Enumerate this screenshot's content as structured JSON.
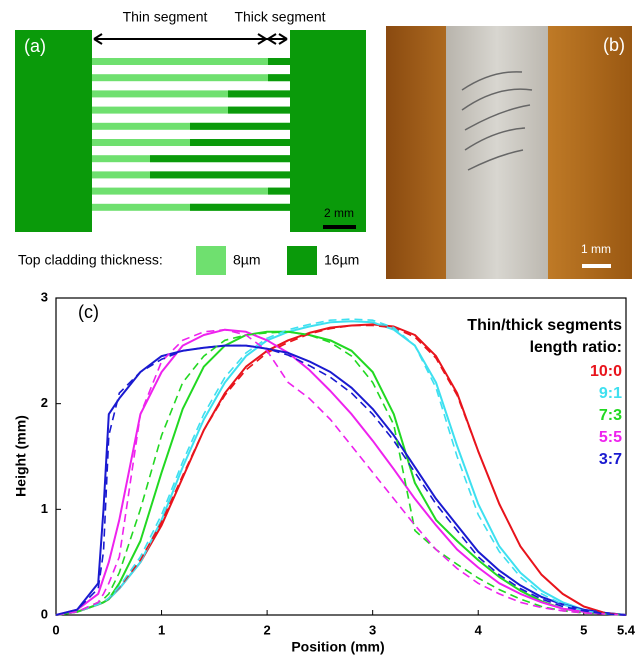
{
  "panel_a": {
    "label": "(a)",
    "thin": "Thin segment",
    "thick": "Thick segment",
    "scale": "2 mm",
    "legend_title": "Top cladding thickness:",
    "thin_value": "8µm",
    "thick_value": "16µm"
  },
  "panel_b": {
    "label": "(b)",
    "scale": "1 mm"
  },
  "chart_data": {
    "type": "line",
    "panel_label": "(c)",
    "x_label": "Position (mm)",
    "y_label": "Height (mm)",
    "legend_title": [
      "Thin/thick segments",
      "length ratio:"
    ],
    "xlim": [
      0,
      5.4
    ],
    "xticks": [
      0,
      1,
      2,
      3,
      4,
      5,
      5.4
    ],
    "ylim": [
      0,
      3
    ],
    "yticks": [
      0,
      1,
      2,
      3
    ],
    "x": [
      0,
      0.2,
      0.4,
      0.45,
      0.5,
      0.6,
      0.8,
      1,
      1.2,
      1.4,
      1.6,
      1.8,
      2,
      2.2,
      2.4,
      2.6,
      2.8,
      3,
      3.2,
      3.4,
      3.6,
      3.8,
      4,
      4.2,
      4.4,
      4.6,
      4.8,
      5,
      5.2,
      5.4
    ],
    "series": [
      {
        "name": "10:0",
        "color": "#e8141c",
        "values": [
          0,
          0.03,
          0.1,
          0.12,
          0.15,
          0.25,
          0.5,
          0.85,
          1.3,
          1.75,
          2.1,
          2.35,
          2.5,
          2.6,
          2.67,
          2.72,
          2.74,
          2.75,
          2.73,
          2.65,
          2.45,
          2.1,
          1.55,
          1.05,
          0.65,
          0.38,
          0.2,
          0.08,
          0.02,
          0
        ]
      },
      {
        "name": "9:1",
        "color": "#3ee0f0",
        "values": [
          0,
          0.03,
          0.1,
          0.12,
          0.15,
          0.25,
          0.5,
          0.9,
          1.4,
          1.85,
          2.2,
          2.45,
          2.6,
          2.68,
          2.73,
          2.77,
          2.78,
          2.77,
          2.7,
          2.55,
          2.2,
          1.6,
          1.05,
          0.65,
          0.4,
          0.23,
          0.12,
          0.05,
          0.02,
          0
        ]
      },
      {
        "name": "7:3",
        "color": "#22d822",
        "values": [
          0,
          0.03,
          0.1,
          0.12,
          0.15,
          0.3,
          0.7,
          1.35,
          1.95,
          2.35,
          2.55,
          2.65,
          2.68,
          2.68,
          2.65,
          2.6,
          2.5,
          2.3,
          1.9,
          1.25,
          0.9,
          0.7,
          0.52,
          0.36,
          0.23,
          0.13,
          0.06,
          0.03,
          0.01,
          0
        ]
      },
      {
        "name": "5:5",
        "color": "#ee22ee",
        "values": [
          0,
          0.05,
          0.2,
          0.35,
          0.5,
          0.9,
          1.9,
          2.3,
          2.55,
          2.65,
          2.7,
          2.68,
          2.6,
          2.48,
          2.32,
          2.12,
          1.9,
          1.65,
          1.38,
          1.1,
          0.85,
          0.62,
          0.45,
          0.3,
          0.2,
          0.12,
          0.06,
          0.03,
          0.01,
          0
        ]
      },
      {
        "name": "3:7",
        "color": "#1a1ad0",
        "values": [
          0,
          0.05,
          0.3,
          1.0,
          1.9,
          2.05,
          2.3,
          2.45,
          2.5,
          2.53,
          2.55,
          2.55,
          2.52,
          2.48,
          2.4,
          2.3,
          2.15,
          1.95,
          1.7,
          1.4,
          1.1,
          0.85,
          0.6,
          0.42,
          0.28,
          0.17,
          0.1,
          0.05,
          0.02,
          0
        ]
      },
      {
        "color": "#e8141c",
        "dashed": true,
        "values": [
          0,
          0.03,
          0.1,
          0.12,
          0.16,
          0.26,
          0.52,
          0.88,
          1.32,
          1.75,
          2.08,
          2.32,
          2.48,
          2.58,
          2.66,
          2.71,
          2.74,
          2.74,
          2.72,
          2.63,
          2.43,
          2.08,
          1.55,
          1.05,
          0.65,
          0.38,
          0.2,
          0.08,
          0.02,
          0
        ]
      },
      {
        "color": "#3ee0f0",
        "dashed": true,
        "values": [
          0,
          0.03,
          0.1,
          0.12,
          0.16,
          0.27,
          0.55,
          0.95,
          1.45,
          1.9,
          2.25,
          2.48,
          2.62,
          2.7,
          2.75,
          2.79,
          2.8,
          2.79,
          2.72,
          2.55,
          2.15,
          1.5,
          0.95,
          0.6,
          0.36,
          0.2,
          0.1,
          0.04,
          0.01,
          0
        ]
      },
      {
        "color": "#22d822",
        "dashed": true,
        "values": [
          0,
          0.03,
          0.12,
          0.15,
          0.2,
          0.4,
          1.0,
          1.7,
          2.2,
          2.45,
          2.6,
          2.65,
          2.67,
          2.68,
          2.65,
          2.58,
          2.45,
          2.2,
          1.8,
          0.8,
          0.62,
          0.48,
          0.35,
          0.24,
          0.15,
          0.08,
          0.04,
          0.02,
          0.01,
          0
        ]
      },
      {
        "color": "#ee22ee",
        "dashed": true,
        "values": [
          0,
          0.03,
          0.12,
          0.2,
          0.3,
          0.55,
          1.9,
          2.4,
          2.6,
          2.68,
          2.7,
          2.65,
          2.5,
          2.2,
          2.05,
          1.85,
          1.6,
          1.35,
          1.1,
          0.85,
          0.62,
          0.44,
          0.3,
          0.2,
          0.12,
          0.07,
          0.04,
          0.02,
          0.01,
          0
        ]
      },
      {
        "color": "#1a1ad0",
        "dashed": true,
        "values": [
          0,
          0.05,
          0.25,
          0.6,
          1.7,
          2.1,
          2.3,
          2.42,
          2.5,
          2.53,
          2.55,
          2.55,
          2.52,
          2.46,
          2.36,
          2.25,
          2.1,
          1.9,
          1.65,
          1.35,
          1.05,
          0.8,
          0.55,
          0.38,
          0.25,
          0.15,
          0.08,
          0.04,
          0.01,
          0
        ]
      }
    ]
  }
}
